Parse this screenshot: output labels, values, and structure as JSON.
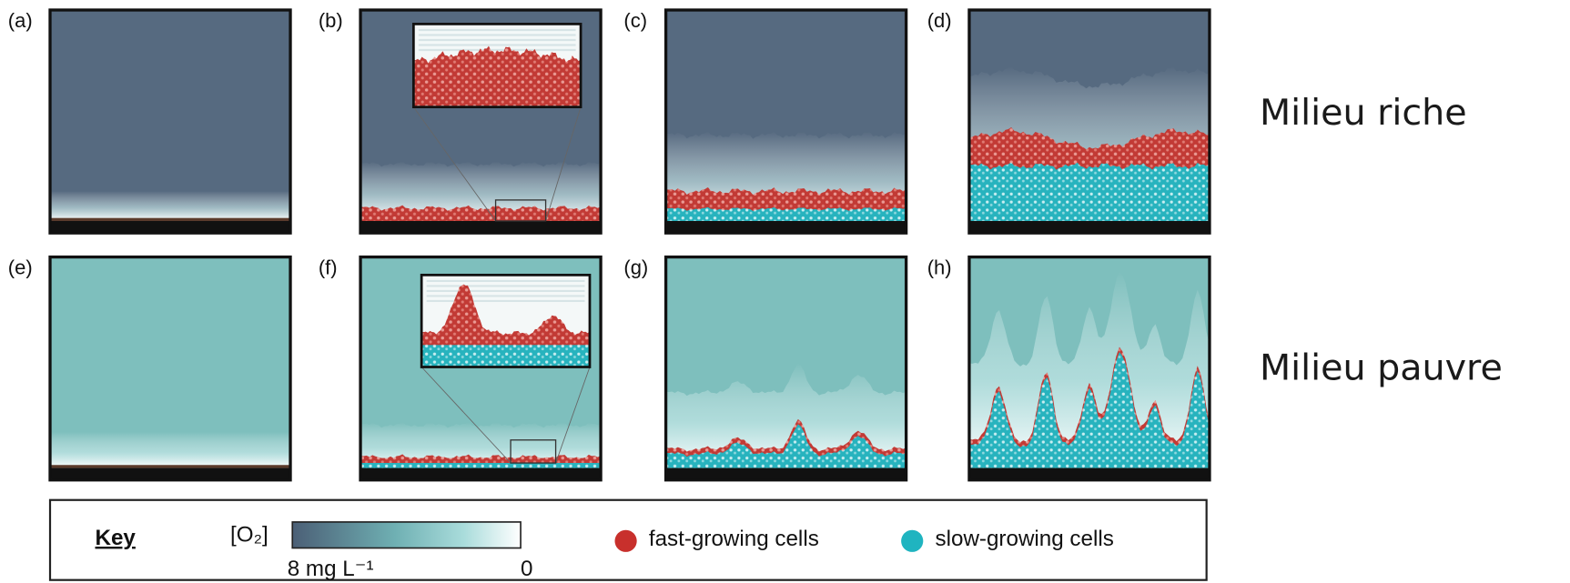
{
  "panels": {
    "labels": [
      "(a)",
      "(b)",
      "(c)",
      "(d)",
      "(e)",
      "(f)",
      "(g)",
      "(h)"
    ]
  },
  "rows": [
    "Milieu riche",
    "Milieu pauvre"
  ],
  "key": {
    "title": "Key",
    "oxygen": "[O₂]",
    "high": "8 mg L⁻¹",
    "low": "0",
    "fast": "fast-growing cells",
    "slow": "slow-growing cells"
  }
}
